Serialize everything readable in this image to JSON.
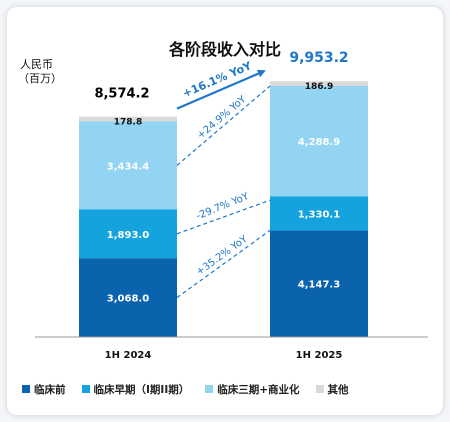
{
  "chart_data": {
    "type": "bar",
    "stacked": true,
    "title": "各阶段收入对比",
    "ylabel": "人民币\n（百万）",
    "categories": [
      "1H 2024",
      "1H 2025"
    ],
    "totals": [
      "8,574.2",
      "9,953.2"
    ],
    "series": [
      {
        "name": "临床前",
        "values": [
          3068.0,
          4147.3
        ],
        "labels": [
          "3,068.0",
          "4,147.3"
        ],
        "color": "#0b63ae"
      },
      {
        "name": "临床早期（I期II期）",
        "values": [
          1893.0,
          1330.1
        ],
        "labels": [
          "1,893.0",
          "1,330.1"
        ],
        "color": "#15a3de"
      },
      {
        "name": "临床三期+商业化",
        "values": [
          3434.4,
          4288.9
        ],
        "labels": [
          "3,434.4",
          "4,288.9"
        ],
        "color": "#93d4f2"
      },
      {
        "name": "其他",
        "values": [
          178.8,
          186.9
        ],
        "labels": [
          "178.8",
          "186.9"
        ],
        "color": "#d9d9d9"
      }
    ],
    "growth_labels": [
      "+35.2% YoY",
      "-29.7% YoY",
      "+24.9% YoY"
    ],
    "total_growth_label": "+16.1% YoY",
    "legend_position": "bottom",
    "grid": false
  },
  "colors": {
    "accent": "#1f77c8",
    "total_2025": "#1f77c8",
    "total_2024": "#000000"
  }
}
